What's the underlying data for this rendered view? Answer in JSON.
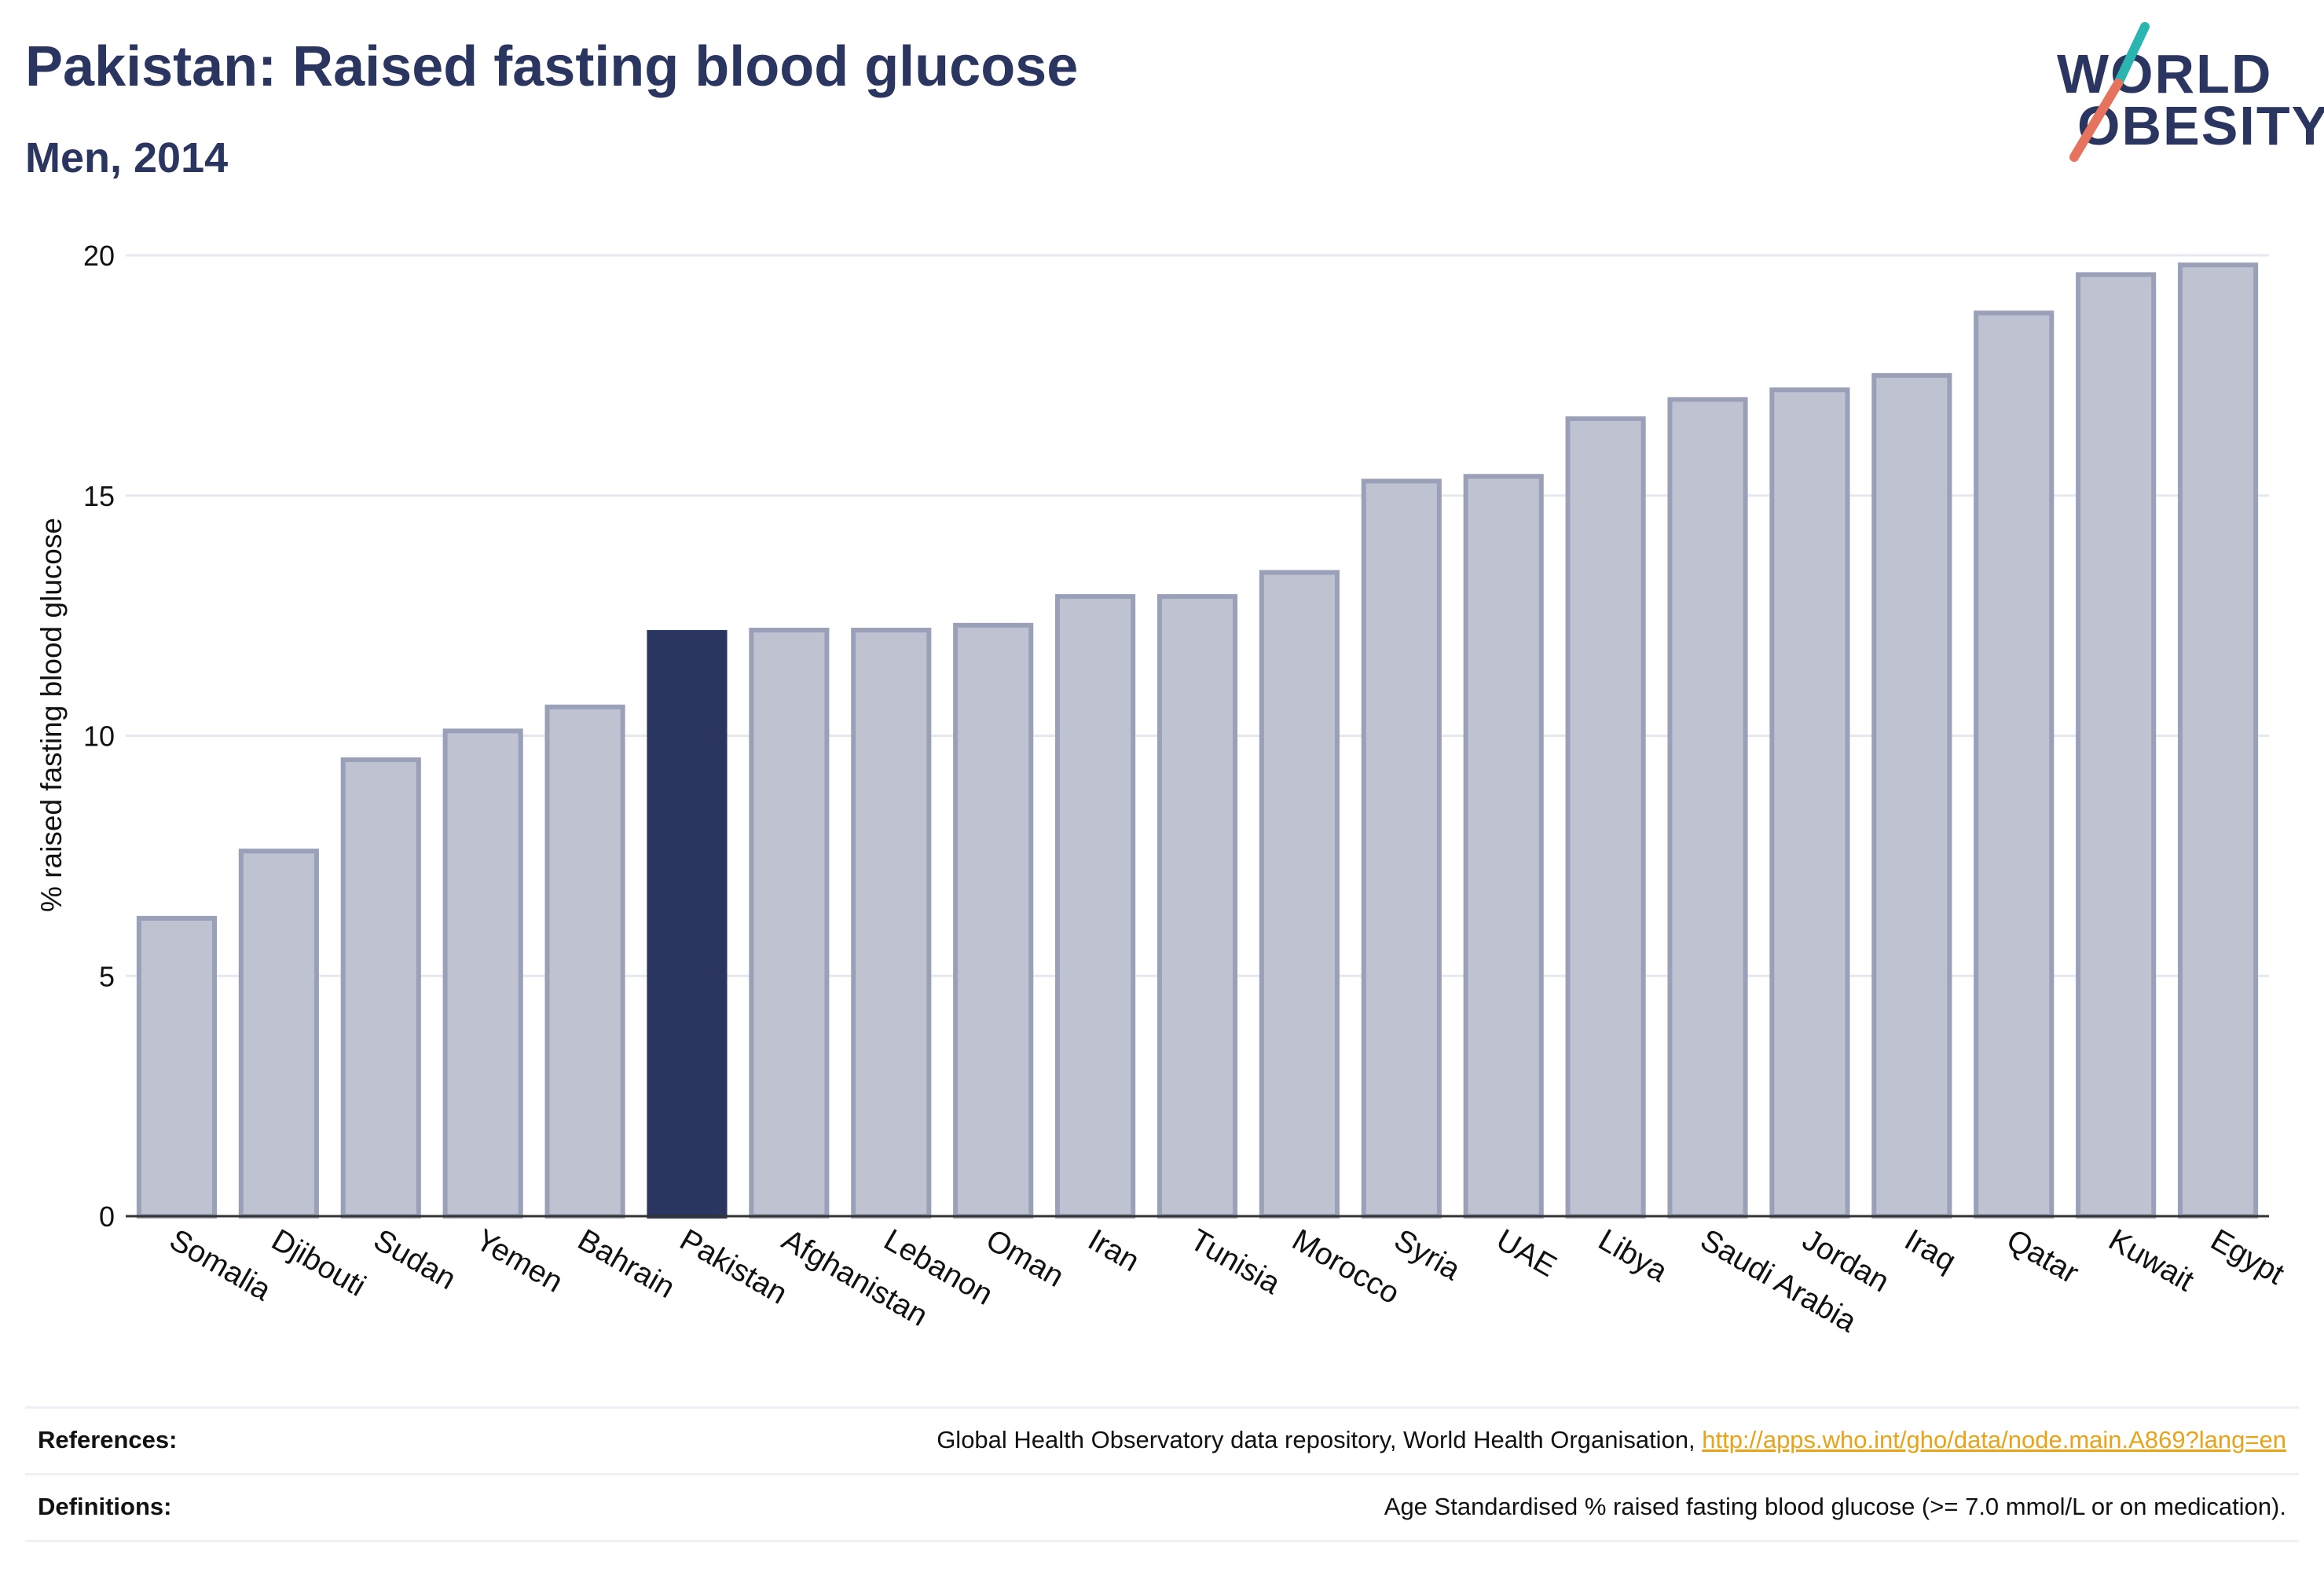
{
  "title": "Pakistan: Raised fasting blood glucose",
  "subtitle": "Men, 2014",
  "logo": {
    "line1": "WORLD",
    "line2": "OBESITY"
  },
  "colors": {
    "highlight": "#2a3560",
    "bar_fill": "#bfc3d1",
    "bar_stroke": "#9aa0b8",
    "grid": "#e6e8ef",
    "logo_teal": "#2bb5b0",
    "logo_coral": "#e5735d",
    "link": "#e8a317"
  },
  "chart_data": {
    "type": "bar",
    "ylabel": "% raised fasting blood glucose",
    "xlabel": "",
    "ylim": [
      0,
      20
    ],
    "yticks": [
      0,
      5,
      10,
      15,
      20
    ],
    "grid": true,
    "highlight_category": "Pakistan",
    "categories": [
      "Somalia",
      "Djibouti",
      "Sudan",
      "Yemen",
      "Bahrain",
      "Pakistan",
      "Afghanistan",
      "Lebanon",
      "Oman",
      "Iran",
      "Tunisia",
      "Morocco",
      "Syria",
      "UAE",
      "Libya",
      "Saudi Arabia",
      "Jordan",
      "Iraq",
      "Qatar",
      "Kuwait",
      "Egypt"
    ],
    "values": [
      6.2,
      7.6,
      9.5,
      10.1,
      10.6,
      12.15,
      12.2,
      12.2,
      12.3,
      12.9,
      12.9,
      13.4,
      15.3,
      15.4,
      16.6,
      17.0,
      17.2,
      17.5,
      18.8,
      19.6,
      19.8
    ]
  },
  "footer": {
    "references_label": "References:",
    "references_text": "Global Health Observatory data repository, World Health Organisation, ",
    "references_link": "http://apps.who.int/gho/data/node.main.A869?lang=en",
    "definitions_label": "Definitions:",
    "definitions_text": "Age Standardised % raised fasting blood glucose (>= 7.0 mmol/L or on medication)."
  }
}
